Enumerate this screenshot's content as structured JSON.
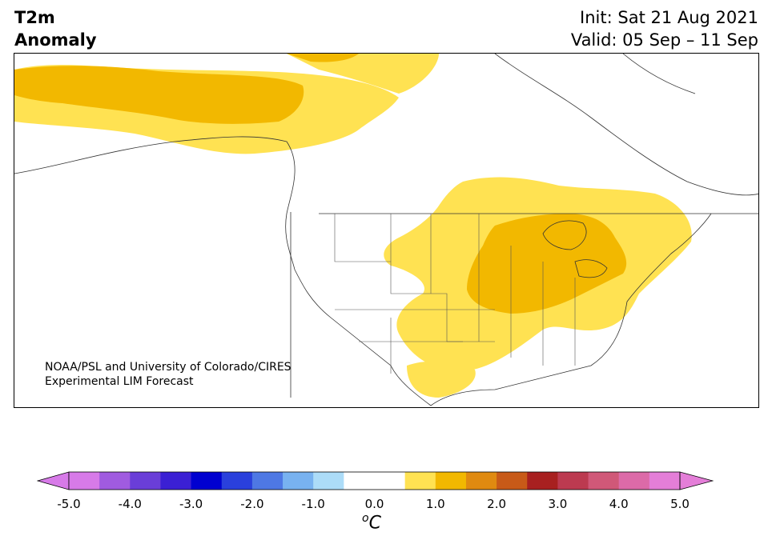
{
  "header": {
    "title_line1": "T2m",
    "title_line2": "Anomaly",
    "init": "Init: Sat 21 Aug 2021",
    "valid": "Valid: 05 Sep – 11 Sep"
  },
  "credit": {
    "line1": "NOAA/PSL and University of Colorado/CIRES",
    "line2": "Experimental LIM Forecast"
  },
  "colorbar": {
    "unit_sup": "o",
    "unit_main": "C",
    "ticks": [
      "-5.0",
      "-4.0",
      "-3.0",
      "-2.0",
      "-1.0",
      "0.0",
      "1.0",
      "2.0",
      "3.0",
      "4.0",
      "5.0"
    ],
    "colors": [
      "#d77ae8",
      "#a05be0",
      "#6a3ed8",
      "#3b20d4",
      "#0000d0",
      "#2a40dc",
      "#4e78e4",
      "#78b2f0",
      "#acdcf8",
      "#ffffff",
      "#ffffff",
      "#ffe252",
      "#f2b800",
      "#e08a10",
      "#c85a18",
      "#a82020",
      "#bc3a50",
      "#d05878",
      "#dc6aa8",
      "#e47ed8"
    ],
    "extend_low": "#d77ae8",
    "extend_high": "#e47ed8"
  },
  "map_colors": {
    "light_anomaly": "#ffe252",
    "medium_anomaly": "#f2b800"
  }
}
